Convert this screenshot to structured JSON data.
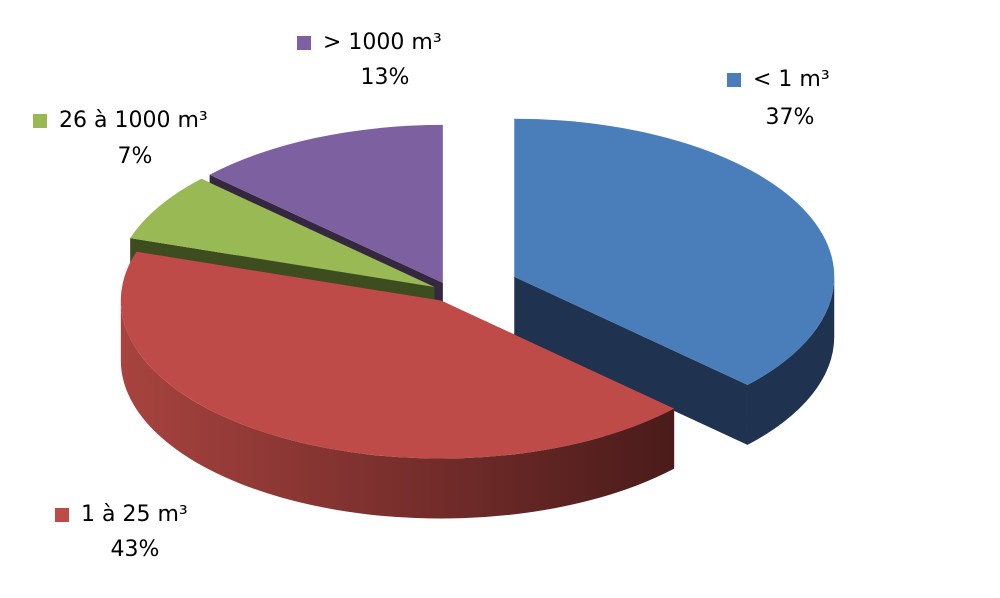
{
  "chart_data": {
    "type": "pie",
    "categories": [
      "< 1 m³",
      "1 à 25 m³",
      "26 à 1000 m³",
      "> 1000 m³"
    ],
    "values": [
      37,
      43,
      7,
      13
    ],
    "value_labels": [
      "37%",
      "43%",
      "7%",
      "13%"
    ],
    "colors": [
      "#4a7ebb",
      "#be4b48",
      "#98b954",
      "#7d60a0"
    ]
  }
}
